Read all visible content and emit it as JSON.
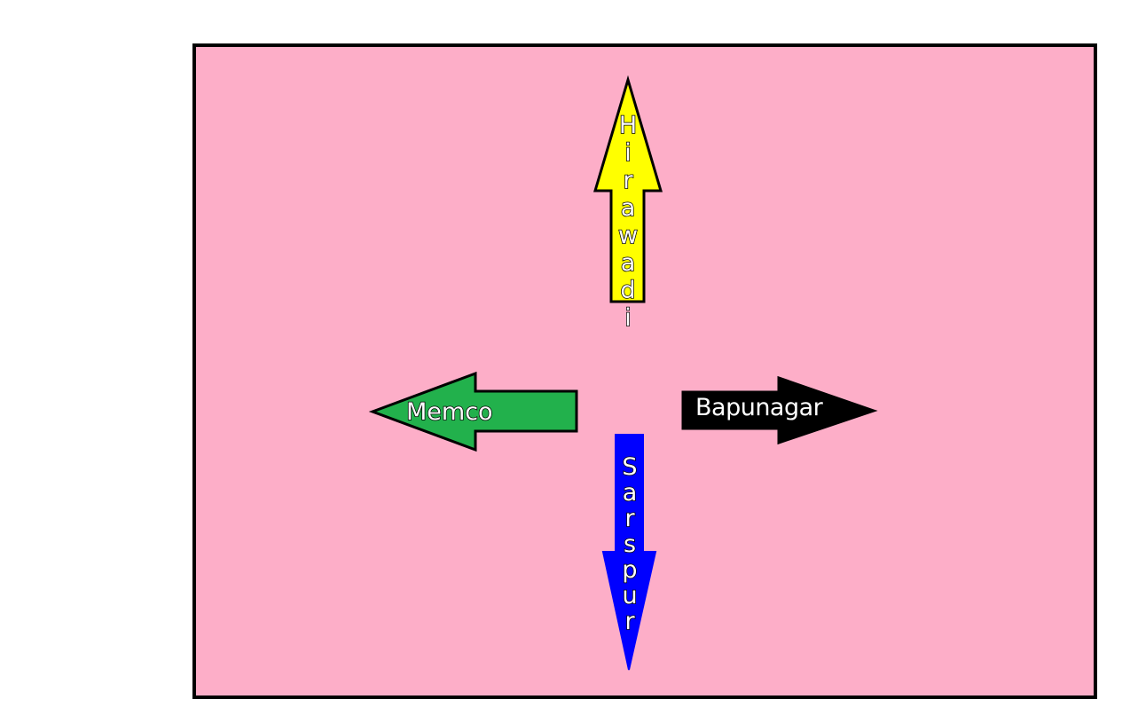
{
  "colors": {
    "page_background": "#ffffff",
    "panel_background": "#fdaec8",
    "outline": "#000000",
    "hirawadi_arrow": "#ffff00",
    "memco_arrow": "#22b14c",
    "bapunagar_arrow": "#000000",
    "sarspur_arrow": "#0000ff",
    "label_fill": "#ffffff"
  },
  "arrows": {
    "hirawadi": {
      "label": "Hirawadi",
      "direction": "up"
    },
    "memco": {
      "label": "Memco",
      "direction": "left"
    },
    "bapunagar": {
      "label": "Bapunagar",
      "direction": "right"
    },
    "sarspur": {
      "label": "Sarspur",
      "direction": "down"
    }
  }
}
